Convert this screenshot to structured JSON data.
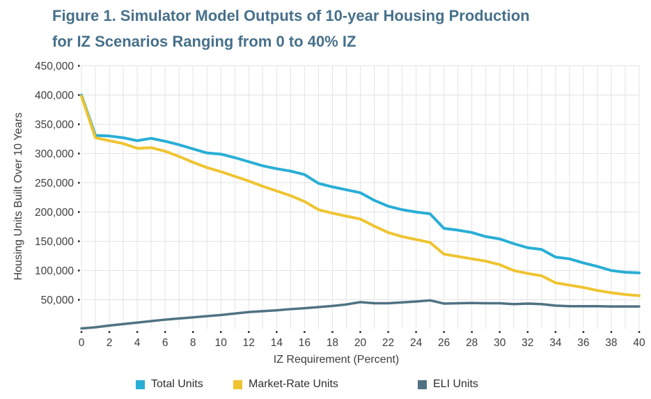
{
  "figure": {
    "title_line1": "Figure 1. Simulator Model Outputs of 10-year Housing Production",
    "title_line2": "for IZ Scenarios Ranging from 0 to 40% IZ"
  },
  "chart_data": {
    "type": "line",
    "title": "Figure 1. Simulator Model Outputs of 10-year Housing Production for IZ Scenarios Ranging from 0 to 40% IZ",
    "xlabel": "IZ Requirement (Percent)",
    "ylabel": "Housing Units Built Over 10 Years",
    "x_min": 0,
    "x_max": 40,
    "y_min": 0,
    "y_max": 450000,
    "grid": true,
    "legend_position": "bottom",
    "x_tick_values": [
      0,
      2,
      4,
      6,
      8,
      10,
      12,
      14,
      16,
      18,
      20,
      22,
      24,
      26,
      28,
      30,
      32,
      34,
      36,
      38,
      40
    ],
    "x_tick_labels": [
      "0",
      "2",
      "4",
      "6",
      "8",
      "10",
      "12",
      "14",
      "16",
      "18",
      "20",
      "22",
      "24",
      "26",
      "28",
      "30",
      "32",
      "34",
      "36",
      "38",
      "40"
    ],
    "y_tick_values": [
      50000,
      100000,
      150000,
      200000,
      250000,
      300000,
      350000,
      400000,
      450000
    ],
    "y_tick_labels": [
      "50,000",
      "100,000",
      "150,000",
      "200,000",
      "250,000",
      "300,000",
      "350,000",
      "400,000",
      "450,000"
    ],
    "x": [
      0,
      1,
      2,
      3,
      4,
      5,
      6,
      7,
      8,
      9,
      10,
      11,
      12,
      13,
      14,
      15,
      16,
      17,
      18,
      19,
      20,
      21,
      22,
      23,
      24,
      25,
      26,
      27,
      28,
      29,
      30,
      31,
      32,
      33,
      34,
      35,
      36,
      37,
      38,
      39,
      40
    ],
    "series": [
      {
        "name": "Total Units",
        "color": "#29aed6",
        "values": [
          400000,
          331000,
          330000,
          327000,
          322000,
          326000,
          321000,
          315000,
          308000,
          301000,
          299000,
          293000,
          286000,
          279000,
          274000,
          270000,
          264000,
          249000,
          243000,
          238000,
          233000,
          220000,
          210000,
          204000,
          200000,
          197000,
          172000,
          169000,
          165000,
          158000,
          154000,
          146000,
          139000,
          136000,
          123000,
          120000,
          113000,
          107000,
          100000,
          97000,
          96000
        ]
      },
      {
        "name": "Market-Rate Units",
        "color": "#efc431",
        "values": [
          398000,
          327000,
          322000,
          317000,
          309000,
          310000,
          304000,
          295000,
          285000,
          276000,
          269000,
          261000,
          253000,
          244000,
          236000,
          228000,
          218000,
          204000,
          198000,
          193000,
          188000,
          176000,
          165000,
          158000,
          153000,
          148000,
          128000,
          124000,
          120000,
          116000,
          110000,
          100000,
          95000,
          91000,
          79000,
          75000,
          71000,
          66000,
          62000,
          59000,
          57000
        ]
      },
      {
        "name": "ELI Units",
        "color": "#507283",
        "values": [
          1000,
          3000,
          6000,
          8500,
          11000,
          13500,
          16000,
          18000,
          20000,
          22000,
          24000,
          26500,
          29000,
          30500,
          32000,
          34000,
          35500,
          37500,
          39500,
          42000,
          46000,
          44000,
          44000,
          45500,
          47000,
          49000,
          43500,
          44000,
          44500,
          44000,
          44000,
          42500,
          43500,
          42500,
          40000,
          39000,
          39000,
          39000,
          38500,
          38500,
          38500
        ]
      }
    ]
  },
  "colors": {
    "title": "#47708a",
    "axis_text": "#3d3d3d",
    "grid": "#e3e3e3",
    "tick": "#1f1f1f",
    "background": "#ffffff"
  }
}
